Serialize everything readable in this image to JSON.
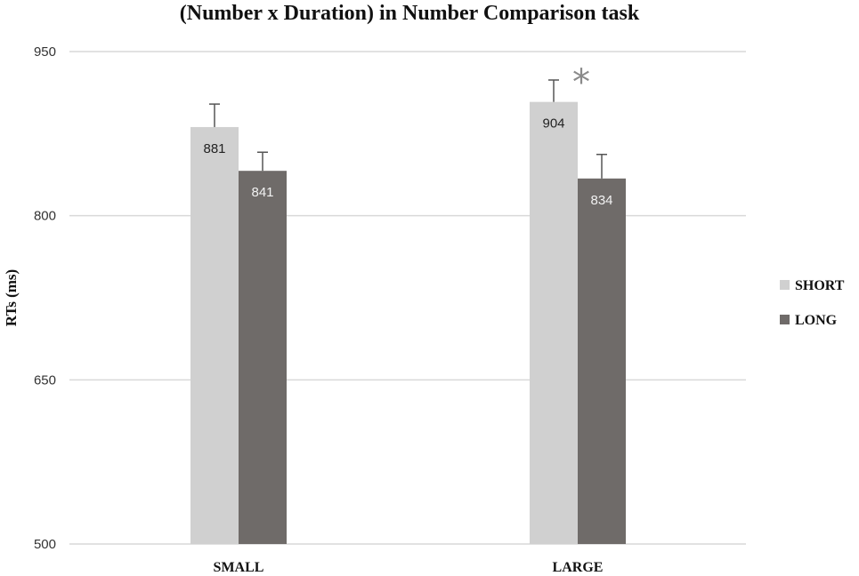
{
  "chart_data": {
    "type": "bar",
    "title": "(Number x Duration) in Number Comparison task",
    "ylabel": "RTs (ms)",
    "xlabel": "",
    "categories": [
      "SMALL",
      "LARGE"
    ],
    "series": [
      {
        "name": "SHORT",
        "color": "#d0d0d0",
        "label_color": "#222222",
        "values": [
          881,
          904
        ],
        "error_upper": [
          902,
          924
        ]
      },
      {
        "name": "LONG",
        "color": "#6f6b69",
        "label_color": "#f2f2f2",
        "values": [
          841,
          834
        ],
        "error_upper": [
          858,
          856
        ]
      }
    ],
    "ylim": [
      500,
      950
    ],
    "yticks": [
      500,
      650,
      800,
      950
    ],
    "grid": true,
    "legend_position": "right",
    "annotations": [
      {
        "text": "*",
        "category": "LARGE",
        "series": "SHORT"
      }
    ]
  }
}
